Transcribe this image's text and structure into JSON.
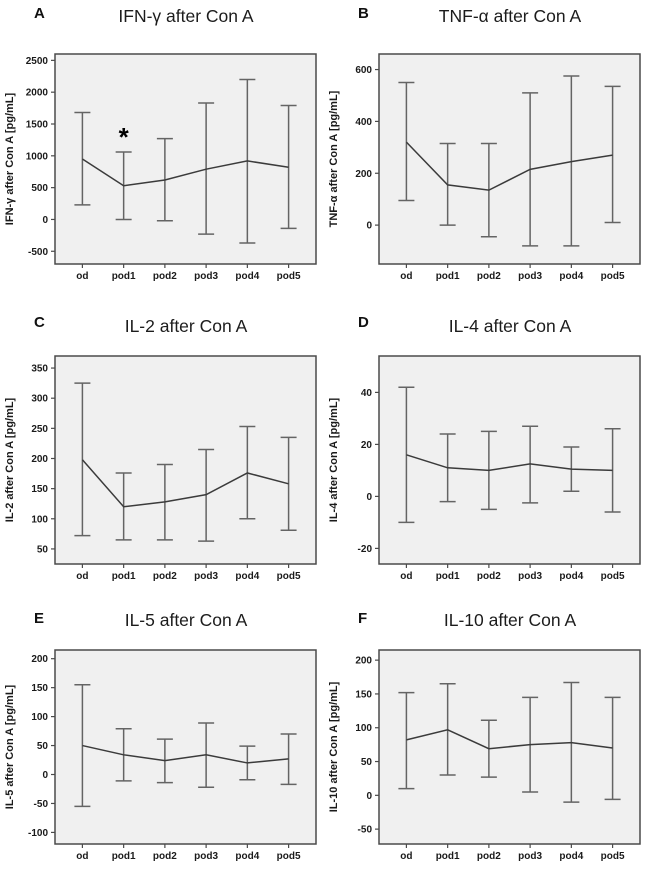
{
  "figure": {
    "background": "#ffffff",
    "plot_bg": "#f0f0f0",
    "axis_color": "#4a4a4a",
    "line_color": "#3b3b3b",
    "errorbar_color": "#646464",
    "text_color": "#1a1a1a",
    "marker_color": "#000000"
  },
  "chart_data": [
    {
      "type": "line",
      "label": "A",
      "title": "IFN-γ after Con A",
      "ylabel": "IFN-γ after Con A [pg/mL]",
      "categories": [
        "od",
        "pod1",
        "pod2",
        "pod3",
        "pod4",
        "pod5"
      ],
      "means": [
        950,
        530,
        620,
        790,
        920,
        820
      ],
      "err_low": [
        230,
        0,
        -20,
        -230,
        -370,
        -140
      ],
      "err_high": [
        1680,
        1060,
        1270,
        1830,
        2200,
        1790
      ],
      "yticks": [
        -500,
        0,
        500,
        1000,
        1500,
        2000,
        2500
      ],
      "ylim": [
        -700,
        2600
      ],
      "sig_marker": {
        "index": 1,
        "text": "*"
      }
    },
    {
      "type": "line",
      "label": "B",
      "title": "TNF-α after Con A",
      "ylabel": "TNF-α after Con A [pg/mL]",
      "categories": [
        "od",
        "pod1",
        "pod2",
        "pod3",
        "pod4",
        "pod5"
      ],
      "means": [
        320,
        155,
        135,
        215,
        245,
        270
      ],
      "err_low": [
        95,
        0,
        -45,
        -80,
        -80,
        10
      ],
      "err_high": [
        550,
        315,
        315,
        510,
        575,
        535
      ],
      "yticks": [
        0,
        200,
        400,
        600
      ],
      "ylim": [
        -150,
        660
      ],
      "sig_marker": null
    },
    {
      "type": "line",
      "label": "C",
      "title": "IL-2 after Con A",
      "ylabel": "IL-2 after Con A [pg/mL]",
      "categories": [
        "od",
        "pod1",
        "pod2",
        "pod3",
        "pod4",
        "pod5"
      ],
      "means": [
        198,
        120,
        128,
        140,
        176,
        158
      ],
      "err_low": [
        72,
        65,
        65,
        63,
        100,
        81
      ],
      "err_high": [
        325,
        176,
        190,
        215,
        253,
        235
      ],
      "yticks": [
        50,
        100,
        150,
        200,
        250,
        300,
        350
      ],
      "ylim": [
        25,
        370
      ],
      "sig_marker": null
    },
    {
      "type": "line",
      "label": "D",
      "title": "IL-4 after Con A",
      "ylabel": "IL-4 after Con A [pg/mL]",
      "categories": [
        "od",
        "pod1",
        "pod2",
        "pod3",
        "pod4",
        "pod5"
      ],
      "means": [
        16,
        11,
        10,
        12.5,
        10.5,
        10
      ],
      "err_low": [
        -10,
        -2,
        -5,
        -2.5,
        2,
        -6
      ],
      "err_high": [
        42,
        24,
        25,
        27,
        19,
        26
      ],
      "yticks": [
        -20,
        0,
        20,
        40
      ],
      "ylim": [
        -26,
        54
      ],
      "sig_marker": null
    },
    {
      "type": "line",
      "label": "E",
      "title": "IL-5 after Con A",
      "ylabel": "IL-5 after Con A [pg/mL]",
      "categories": [
        "od",
        "pod1",
        "pod2",
        "pod3",
        "pod4",
        "pod5"
      ],
      "means": [
        50,
        34,
        24,
        34,
        20,
        27
      ],
      "err_low": [
        -55,
        -11,
        -14,
        -22,
        -9,
        -17
      ],
      "err_high": [
        155,
        79,
        61,
        89,
        49,
        70
      ],
      "yticks": [
        -100,
        -50,
        0,
        50,
        100,
        150,
        200
      ],
      "ylim": [
        -120,
        215
      ],
      "sig_marker": null
    },
    {
      "type": "line",
      "label": "F",
      "title": "IL-10 after Con A",
      "ylabel": "IL-10 after Con A [pg/mL]",
      "categories": [
        "od",
        "pod1",
        "pod2",
        "pod3",
        "pod4",
        "pod5"
      ],
      "means": [
        82,
        97,
        69,
        75,
        78,
        70
      ],
      "err_low": [
        10,
        30,
        27,
        5,
        -10,
        -6
      ],
      "err_high": [
        152,
        165,
        111,
        145,
        167,
        145
      ],
      "yticks": [
        -50,
        0,
        50,
        100,
        150,
        200
      ],
      "ylim": [
        -72,
        215
      ],
      "sig_marker": null
    }
  ]
}
